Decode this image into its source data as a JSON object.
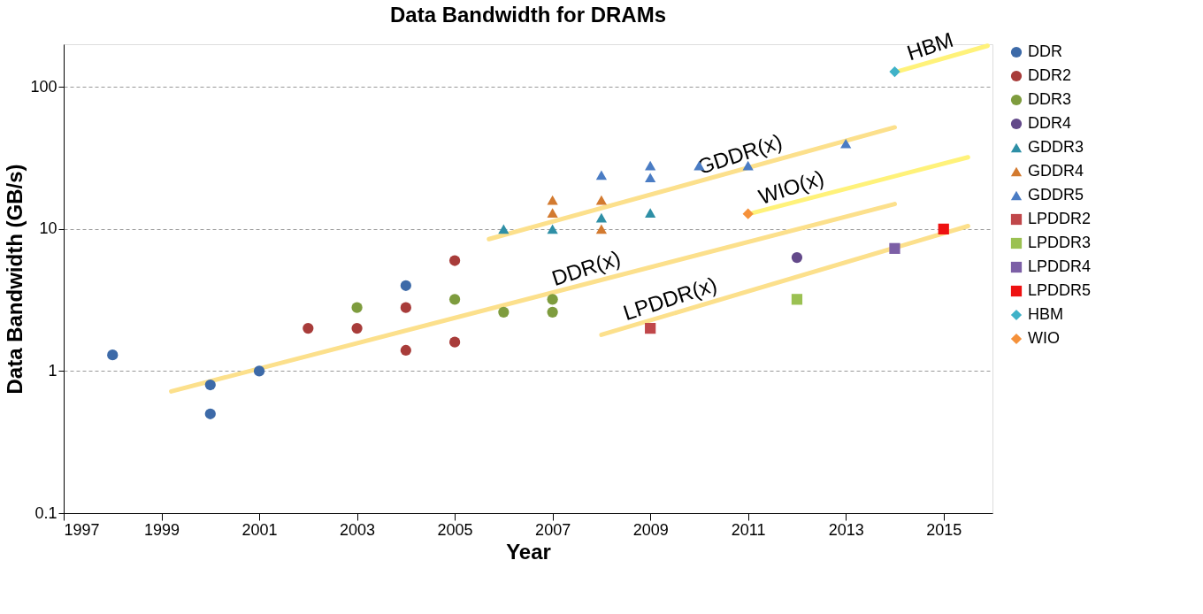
{
  "chart_data": {
    "type": "scatter",
    "title": "Data Bandwidth for DRAMs",
    "xlabel": "Year",
    "ylabel": "Data Bandwidth (GB/s)",
    "log": "y",
    "xlim": [
      1997,
      2016
    ],
    "xticks": [
      1997,
      1999,
      2001,
      2003,
      2005,
      2007,
      2009,
      2011,
      2013,
      2015
    ],
    "ylim": [
      0.1,
      200
    ],
    "yticks": [
      0.1,
      1,
      10,
      100
    ],
    "grid": "y",
    "legend": "right",
    "series": [
      {
        "name": "DDR",
        "color": "#3d6aa8",
        "marker": "circle",
        "x": [
          1998,
          2000,
          2000,
          2001,
          2004
        ],
        "values": [
          1.3,
          0.8,
          0.5,
          1,
          4
        ]
      },
      {
        "name": "DDR2",
        "color": "#a83c3a",
        "marker": "circle",
        "x": [
          2002,
          2003,
          2004,
          2004,
          2005,
          2005
        ],
        "values": [
          2,
          2,
          2.8,
          1.4,
          6,
          1.6
        ]
      },
      {
        "name": "DDR3",
        "color": "#7e9c3e",
        "marker": "circle",
        "x": [
          2003,
          2005,
          2006,
          2007,
          2007
        ],
        "values": [
          2.8,
          3.2,
          2.6,
          3.2,
          2.6
        ]
      },
      {
        "name": "DDR4",
        "color": "#63498a",
        "marker": "circle",
        "x": [
          2012
        ],
        "values": [
          6.3
        ]
      },
      {
        "name": "GDDR3",
        "color": "#2e8fa6",
        "marker": "triangle",
        "x": [
          2006,
          2007,
          2008,
          2009
        ],
        "values": [
          10,
          10,
          12,
          13
        ]
      },
      {
        "name": "GDDR4",
        "color": "#d37a2f",
        "marker": "triangle",
        "x": [
          2007,
          2007,
          2008,
          2008
        ],
        "values": [
          16,
          13,
          16,
          10
        ]
      },
      {
        "name": "GDDR5",
        "color": "#4a7cc4",
        "marker": "triangle",
        "x": [
          2008,
          2009,
          2009,
          2010,
          2011,
          2013
        ],
        "values": [
          24,
          28,
          23,
          28,
          28,
          40
        ]
      },
      {
        "name": "LPDDR2",
        "color": "#c0474a",
        "marker": "square",
        "x": [
          2009
        ],
        "values": [
          2
        ]
      },
      {
        "name": "LPDDR3",
        "color": "#9bc152",
        "marker": "square",
        "x": [
          2012
        ],
        "values": [
          3.2
        ]
      },
      {
        "name": "LPDDR4",
        "color": "#7c5fa6",
        "marker": "square",
        "x": [
          2014
        ],
        "values": [
          7.3
        ]
      },
      {
        "name": "LPDDR5",
        "color": "#ee1111",
        "marker": "square",
        "x": [
          2015
        ],
        "values": [
          10
        ]
      },
      {
        "name": "HBM",
        "color": "#3fb2c8",
        "marker": "diamond",
        "x": [
          2014
        ],
        "values": [
          128
        ]
      },
      {
        "name": "WIO",
        "color": "#f5913a",
        "marker": "diamond",
        "x": [
          2011
        ],
        "values": [
          12.8
        ]
      },
      {
        "type": "line",
        "name": "DDR(x)",
        "color": "#fce08c",
        "x": [
          1999.2,
          2014
        ],
        "values": [
          0.72,
          15
        ]
      },
      {
        "type": "line",
        "name": "GDDR(x)",
        "color": "#fce08c",
        "x": [
          2005.7,
          2014
        ],
        "values": [
          8.5,
          52
        ]
      },
      {
        "type": "line",
        "name": "WIO(x)",
        "color": "#fff27a",
        "x": [
          2011.1,
          2015.5
        ],
        "values": [
          13,
          32
        ]
      },
      {
        "type": "line",
        "name": "LPDDR(x)",
        "color": "#fce08c",
        "x": [
          2008,
          2015.5
        ],
        "values": [
          1.8,
          10.5
        ]
      },
      {
        "type": "line",
        "name": "HBM",
        "color": "#fff27a",
        "x": [
          2014.1,
          2015.9
        ],
        "values": [
          130,
          195
        ]
      }
    ]
  }
}
